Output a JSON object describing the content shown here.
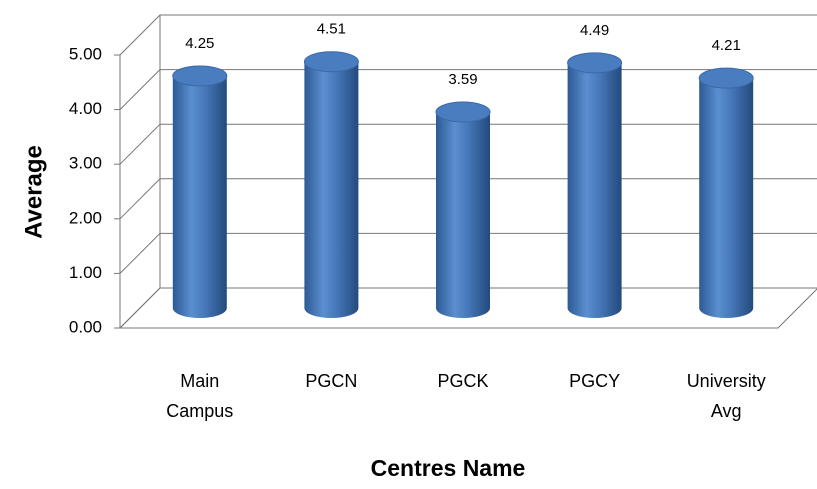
{
  "chart_data": {
    "type": "bar3d",
    "x_label": "Centres Name",
    "y_label": "Average",
    "categories": [
      "Main Campus",
      "PGCN",
      "PGCK",
      "PGCY",
      "University Avg"
    ],
    "values": [
      4.25,
      4.51,
      3.59,
      4.49,
      4.21
    ],
    "color": "#4f81bd",
    "ylim": [
      0,
      5
    ],
    "yticks": [
      {
        "value": 0,
        "label": "0.00"
      },
      {
        "value": 1,
        "label": "1.00"
      },
      {
        "value": 2,
        "label": "2.00"
      },
      {
        "value": 3,
        "label": "3.00"
      },
      {
        "value": 4,
        "label": "4.00"
      },
      {
        "value": 5,
        "label": "5.00"
      }
    ],
    "grid": true
  }
}
